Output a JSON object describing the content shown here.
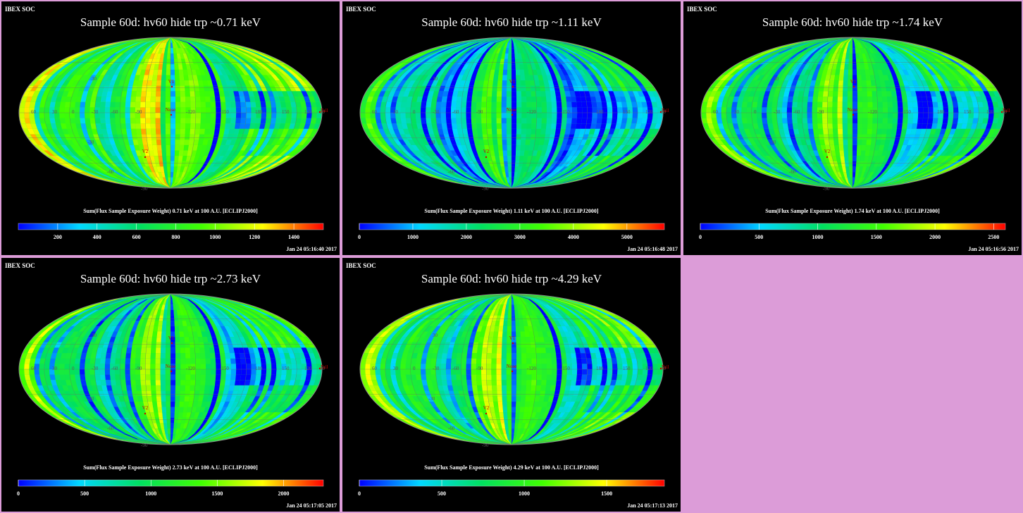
{
  "header_label": "IBEX SOC",
  "colormap": [
    "#0000ff",
    "#00d8ff",
    "#00e060",
    "#40ff00",
    "#ffff00",
    "#ff0000"
  ],
  "markers": {
    "v1": "V1",
    "nose": "Nose",
    "v2": "V2",
    "tail": "Tail"
  },
  "grid_labels": {
    "lon": [
      "60",
      "30",
      "0",
      "-30",
      "-60",
      "-90",
      "-120",
      "-150",
      "180",
      "150",
      "120",
      "90"
    ],
    "lat": [
      "30",
      "-30",
      "-60",
      "-90"
    ]
  },
  "chart_data": [
    {
      "type": "heatmap",
      "title": "Sample 60d: hv60 hide trp ~0.71 keV",
      "colorbar_label": "Sum(Flux Sample Exposure Weight)  0.71 keV at 100 A.U. [ECLIPJ2000]",
      "colorbar_ticks": [
        200,
        400,
        600,
        800,
        1000,
        1200,
        1400
      ],
      "colorbar_range": [
        0,
        1550
      ],
      "timestamp": "Jan 24 05:16:40 2017",
      "level": 0.58
    },
    {
      "type": "heatmap",
      "title": "Sample 60d: hv60 hide trp ~1.11 keV",
      "colorbar_label": "Sum(Flux Sample Exposure Weight)  1.11 keV at 100 A.U. [ECLIPJ2000]",
      "colorbar_ticks": [
        0,
        1000,
        2000,
        3000,
        4000,
        5000
      ],
      "colorbar_range": [
        0,
        5700
      ],
      "timestamp": "Jan 24 05:16:48 2017",
      "level": 0.34
    },
    {
      "type": "heatmap",
      "title": "Sample 60d: hv60 hide trp ~1.74 keV",
      "colorbar_label": "Sum(Flux Sample Exposure Weight)  1.74 keV at 100 A.U. [ECLIPJ2000]",
      "colorbar_ticks": [
        0,
        500,
        1000,
        1500,
        2000,
        2500
      ],
      "colorbar_range": [
        0,
        2600
      ],
      "timestamp": "Jan 24 05:16:56 2017",
      "level": 0.45
    },
    {
      "type": "heatmap",
      "title": "Sample 60d: hv60 hide trp ~2.73 keV",
      "colorbar_label": "Sum(Flux Sample Exposure Weight)  2.73 keV at 100 A.U. [ECLIPJ2000]",
      "colorbar_ticks": [
        0,
        500,
        1000,
        1500,
        2000
      ],
      "colorbar_range": [
        0,
        2300
      ],
      "timestamp": "Jan 24 05:17:05 2017",
      "level": 0.45
    },
    {
      "type": "heatmap",
      "title": "Sample 60d: hv60 hide trp ~4.29 keV",
      "colorbar_label": "Sum(Flux Sample Exposure Weight)  4.29 keV at 100 A.U. [ECLIPJ2000]",
      "colorbar_ticks": [
        0,
        500,
        1000,
        1500
      ],
      "colorbar_range": [
        0,
        1850
      ],
      "timestamp": "Jan 24 05:17:13 2017",
      "level": 0.5
    }
  ]
}
